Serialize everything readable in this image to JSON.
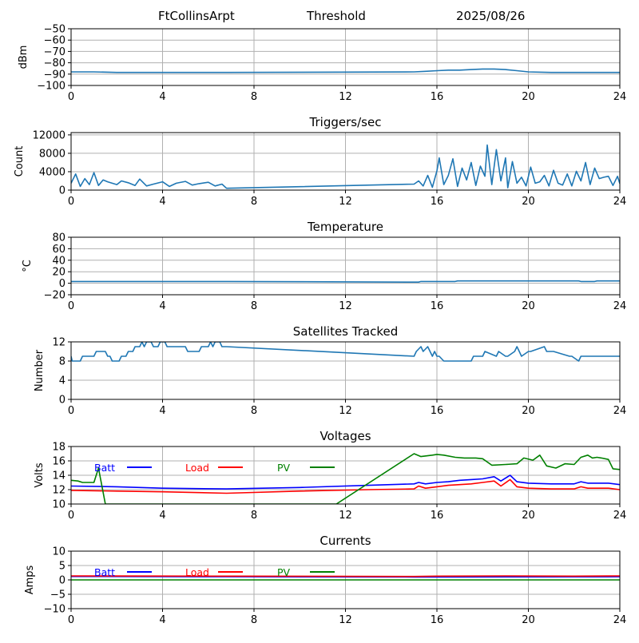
{
  "header": {
    "station": "FtCollinsArpt",
    "mode": "Threshold",
    "date": "2025/08/26"
  },
  "colors": {
    "series_default": "#1f77b4",
    "batt": "#0000ff",
    "load": "#ff0000",
    "pv": "#008000",
    "grid": "#b0b0b0"
  },
  "chart_data": [
    {
      "id": "threshold",
      "type": "line",
      "title": "",
      "xlabel": "",
      "ylabel": "dBm",
      "xlim": [
        0,
        24
      ],
      "ylim": [
        -100,
        -50
      ],
      "xticks": [
        "0",
        "4",
        "8",
        "12",
        "16",
        "20",
        "24"
      ],
      "yticks": [
        "−50",
        "−60",
        "−70",
        "−80",
        "−90",
        "−100"
      ],
      "ytick_values": [
        -50,
        -60,
        -70,
        -80,
        -90,
        -100
      ],
      "grid": true,
      "series": [
        {
          "x": [
            0,
            1,
            2,
            3,
            4,
            5,
            6,
            6.8,
            15,
            15.5,
            16,
            16.5,
            17,
            17.5,
            18,
            18.5,
            19,
            19.5,
            20,
            21,
            22,
            23,
            24
          ],
          "y": [
            -88,
            -88,
            -88.5,
            -88.5,
            -88.5,
            -88.5,
            -88.5,
            -88.5,
            -88,
            -87.5,
            -87,
            -86.5,
            -86.5,
            -86,
            -85.5,
            -85.5,
            -86,
            -87,
            -88,
            -88.5,
            -88.5,
            -88.5,
            -88.5
          ]
        }
      ]
    },
    {
      "id": "triggers",
      "type": "line",
      "title": "Triggers/sec",
      "xlabel": "",
      "ylabel": "Count",
      "xlim": [
        0,
        24
      ],
      "ylim": [
        0,
        12500
      ],
      "xticks": [
        "0",
        "4",
        "8",
        "12",
        "16",
        "20",
        "24"
      ],
      "yticks": [
        "0",
        "4000",
        "8000",
        "12000"
      ],
      "ytick_values": [
        0,
        4000,
        8000,
        12000
      ],
      "grid": true,
      "series": [
        {
          "x": [
            0,
            0.2,
            0.4,
            0.6,
            0.8,
            1.0,
            1.2,
            1.4,
            1.6,
            1.8,
            2.0,
            2.2,
            2.5,
            2.8,
            3.0,
            3.3,
            3.6,
            4.0,
            4.3,
            4.6,
            5.0,
            5.3,
            5.6,
            6.0,
            6.3,
            6.6,
            6.8,
            15.0,
            15.2,
            15.4,
            15.6,
            15.8,
            16.0,
            16.1,
            16.3,
            16.5,
            16.7,
            16.9,
            17.1,
            17.3,
            17.5,
            17.7,
            17.9,
            18.1,
            18.2,
            18.4,
            18.6,
            18.8,
            19.0,
            19.1,
            19.3,
            19.5,
            19.7,
            19.9,
            20.1,
            20.3,
            20.5,
            20.7,
            20.9,
            21.1,
            21.3,
            21.5,
            21.7,
            21.9,
            22.1,
            22.3,
            22.5,
            22.7,
            22.9,
            23.1,
            23.3,
            23.5,
            23.7,
            23.9,
            24.0
          ],
          "y": [
            1500,
            3500,
            800,
            2500,
            1200,
            3800,
            1000,
            2200,
            1800,
            1500,
            1200,
            2000,
            1600,
            1000,
            2400,
            900,
            1300,
            1800,
            800,
            1500,
            1900,
            1100,
            1400,
            1700,
            900,
            1300,
            400,
            1300,
            2000,
            900,
            3200,
            600,
            4200,
            7000,
            1200,
            3200,
            6800,
            800,
            4800,
            2200,
            6000,
            1000,
            5200,
            3000,
            9800,
            1200,
            8800,
            2000,
            7000,
            500,
            6200,
            1500,
            2800,
            900,
            5000,
            1500,
            1800,
            3200,
            900,
            4300,
            1500,
            1100,
            3500,
            900,
            4100,
            2000,
            6000,
            1200,
            4800,
            2500,
            2800,
            3000,
            1000,
            3000,
            1400
          ]
        }
      ]
    },
    {
      "id": "temperature",
      "type": "line",
      "title": "Temperature",
      "xlabel": "",
      "ylabel": "°C",
      "xlim": [
        0,
        24
      ],
      "ylim": [
        -20,
        80
      ],
      "xticks": [
        "0",
        "4",
        "8",
        "12",
        "16",
        "20",
        "24"
      ],
      "yticks": [
        "80",
        "60",
        "40",
        "20",
        "0",
        "−20"
      ],
      "ytick_values": [
        80,
        60,
        40,
        20,
        0,
        -20
      ],
      "grid": true,
      "series": [
        {
          "x": [
            0,
            4,
            6.8,
            15.2,
            15.3,
            16.8,
            16.9,
            22.2,
            22.3,
            22.9,
            23.0,
            24
          ],
          "y": [
            3,
            3,
            3,
            2,
            3,
            3,
            4,
            4,
            3,
            3,
            4,
            4
          ]
        }
      ]
    },
    {
      "id": "satellites",
      "type": "line",
      "title": "Satellites Tracked",
      "xlabel": "",
      "ylabel": "Number",
      "xlim": [
        0,
        24
      ],
      "ylim": [
        0,
        12
      ],
      "xticks": [
        "0",
        "4",
        "8",
        "12",
        "16",
        "20",
        "24"
      ],
      "yticks": [
        "12",
        "8",
        "4",
        "0"
      ],
      "ytick_values": [
        12,
        8,
        4,
        0
      ],
      "grid": true,
      "series": [
        {
          "x": [
            0,
            0.05,
            0.1,
            0.4,
            0.5,
            1.0,
            1.1,
            1.5,
            1.6,
            1.7,
            1.8,
            2.1,
            2.2,
            2.4,
            2.5,
            2.7,
            2.8,
            3.0,
            3.1,
            3.2,
            3.3,
            3.5,
            3.6,
            3.8,
            3.9,
            4.1,
            4.2,
            5.0,
            5.1,
            5.6,
            5.7,
            6.0,
            6.1,
            6.2,
            6.3,
            6.5,
            6.6,
            6.8,
            15.0,
            15.1,
            15.3,
            15.4,
            15.6,
            15.7,
            15.8,
            15.9,
            16.0,
            16.1,
            16.3,
            16.4,
            16.5,
            16.6,
            17.5,
            17.6,
            18.0,
            18.1,
            18.6,
            18.7,
            19.0,
            19.1,
            19.4,
            19.5,
            19.6,
            19.7,
            20.0,
            20.1,
            20.7,
            20.8,
            21.0,
            21.1,
            21.8,
            21.9,
            22.2,
            22.3,
            22.8,
            22.9,
            23.1,
            23.2,
            24
          ],
          "y": [
            9,
            8,
            8,
            8,
            9,
            9,
            10,
            10,
            9,
            9,
            8,
            8,
            9,
            9,
            10,
            10,
            11,
            11,
            12,
            11,
            12,
            12,
            11,
            11,
            12,
            12,
            11,
            11,
            10,
            10,
            11,
            11,
            12,
            11,
            12,
            12,
            11,
            11,
            9,
            10,
            11,
            10,
            11,
            10,
            9,
            10,
            9,
            9,
            8,
            8,
            8,
            8,
            8,
            9,
            9,
            10,
            9,
            10,
            9,
            9,
            10,
            11,
            10,
            9,
            10,
            10,
            11,
            10,
            10,
            10,
            9,
            9,
            8,
            9,
            9,
            9,
            9,
            9,
            9
          ]
        }
      ]
    },
    {
      "id": "voltages",
      "type": "line",
      "title": "Voltages",
      "xlabel": "",
      "ylabel": "Volts",
      "xlim": [
        0,
        24
      ],
      "ylim": [
        10,
        18
      ],
      "xticks": [
        "0",
        "4",
        "8",
        "12",
        "16",
        "20",
        "24"
      ],
      "yticks": [
        "18",
        "16",
        "14",
        "12",
        "10"
      ],
      "ytick_values": [
        18,
        16,
        14,
        12,
        10
      ],
      "grid": true,
      "legend": {
        "placement": "top-left",
        "entries": [
          "Batt",
          "Load",
          "PV"
        ]
      },
      "series": [
        {
          "name": "Batt",
          "color": "blue",
          "x": [
            0,
            2,
            4,
            6.8,
            10,
            13,
            15,
            15.2,
            15.5,
            16,
            16.5,
            17,
            17.5,
            18,
            18.5,
            18.8,
            19.2,
            19.5,
            20,
            21,
            22,
            22.3,
            22.6,
            23.5,
            24
          ],
          "y": [
            12.5,
            12.4,
            12.2,
            12.1,
            12.3,
            12.6,
            12.8,
            13.0,
            12.8,
            13.0,
            13.1,
            13.3,
            13.4,
            13.5,
            13.8,
            13.2,
            14.0,
            13.1,
            12.9,
            12.8,
            12.8,
            13.1,
            12.9,
            12.9,
            12.7
          ]
        },
        {
          "name": "Load",
          "color": "red",
          "x": [
            0,
            2,
            4,
            6.8,
            10,
            13,
            15,
            15.2,
            15.5,
            16,
            16.5,
            17,
            17.5,
            18,
            18.5,
            18.8,
            19.2,
            19.5,
            20,
            21,
            22,
            22.3,
            22.6,
            23.5,
            24
          ],
          "y": [
            11.9,
            11.8,
            11.7,
            11.5,
            11.8,
            12.0,
            12.1,
            12.5,
            12.2,
            12.4,
            12.6,
            12.7,
            12.8,
            13.0,
            13.2,
            12.5,
            13.4,
            12.4,
            12.2,
            12.1,
            12.1,
            12.4,
            12.2,
            12.2,
            12.0
          ]
        },
        {
          "name": "PV",
          "color": "green",
          "x": [
            0,
            0.3,
            0.5,
            1.0,
            1.2,
            1.5,
            11.6,
            15.0,
            15.3,
            15.8,
            16.0,
            16.3,
            16.8,
            17.2,
            17.7,
            18.0,
            18.4,
            19.0,
            19.5,
            19.8,
            20.2,
            20.5,
            20.8,
            21.2,
            21.6,
            22.0,
            22.3,
            22.6,
            22.8,
            23.0,
            23.2,
            23.5,
            23.7,
            24
          ],
          "y": [
            13.3,
            13.2,
            13.0,
            13.0,
            15.0,
            10.0,
            10.0,
            17.0,
            16.6,
            16.8,
            16.9,
            16.8,
            16.5,
            16.4,
            16.4,
            16.3,
            15.4,
            15.5,
            15.6,
            16.4,
            16.1,
            16.8,
            15.3,
            15.0,
            15.6,
            15.5,
            16.5,
            16.8,
            16.4,
            16.5,
            16.4,
            16.2,
            14.9,
            14.8
          ]
        }
      ]
    },
    {
      "id": "currents",
      "type": "line",
      "title": "Currents",
      "xlabel": "",
      "ylabel": "Amps",
      "xlim": [
        0,
        24
      ],
      "ylim": [
        -10,
        10
      ],
      "xticks": [
        "0",
        "4",
        "8",
        "12",
        "16",
        "20",
        "24"
      ],
      "yticks": [
        "10",
        "5",
        "0",
        "−5",
        "−10"
      ],
      "ytick_values": [
        10,
        5,
        0,
        -5,
        -10
      ],
      "grid": true,
      "legend": {
        "placement": "top-left",
        "entries": [
          "Batt",
          "Load",
          "PV"
        ]
      },
      "series": [
        {
          "name": "Batt",
          "color": "blue",
          "x": [
            0,
            6.8,
            15,
            24
          ],
          "y": [
            1.2,
            1.1,
            1.0,
            1.1
          ]
        },
        {
          "name": "Load",
          "color": "red",
          "x": [
            0,
            6.8,
            15,
            16,
            19,
            22,
            24
          ],
          "y": [
            1.4,
            1.3,
            1.2,
            1.3,
            1.4,
            1.3,
            1.4
          ]
        },
        {
          "name": "PV",
          "color": "green",
          "x": [
            0,
            24
          ],
          "y": [
            0.0,
            0.0
          ]
        }
      ]
    }
  ]
}
